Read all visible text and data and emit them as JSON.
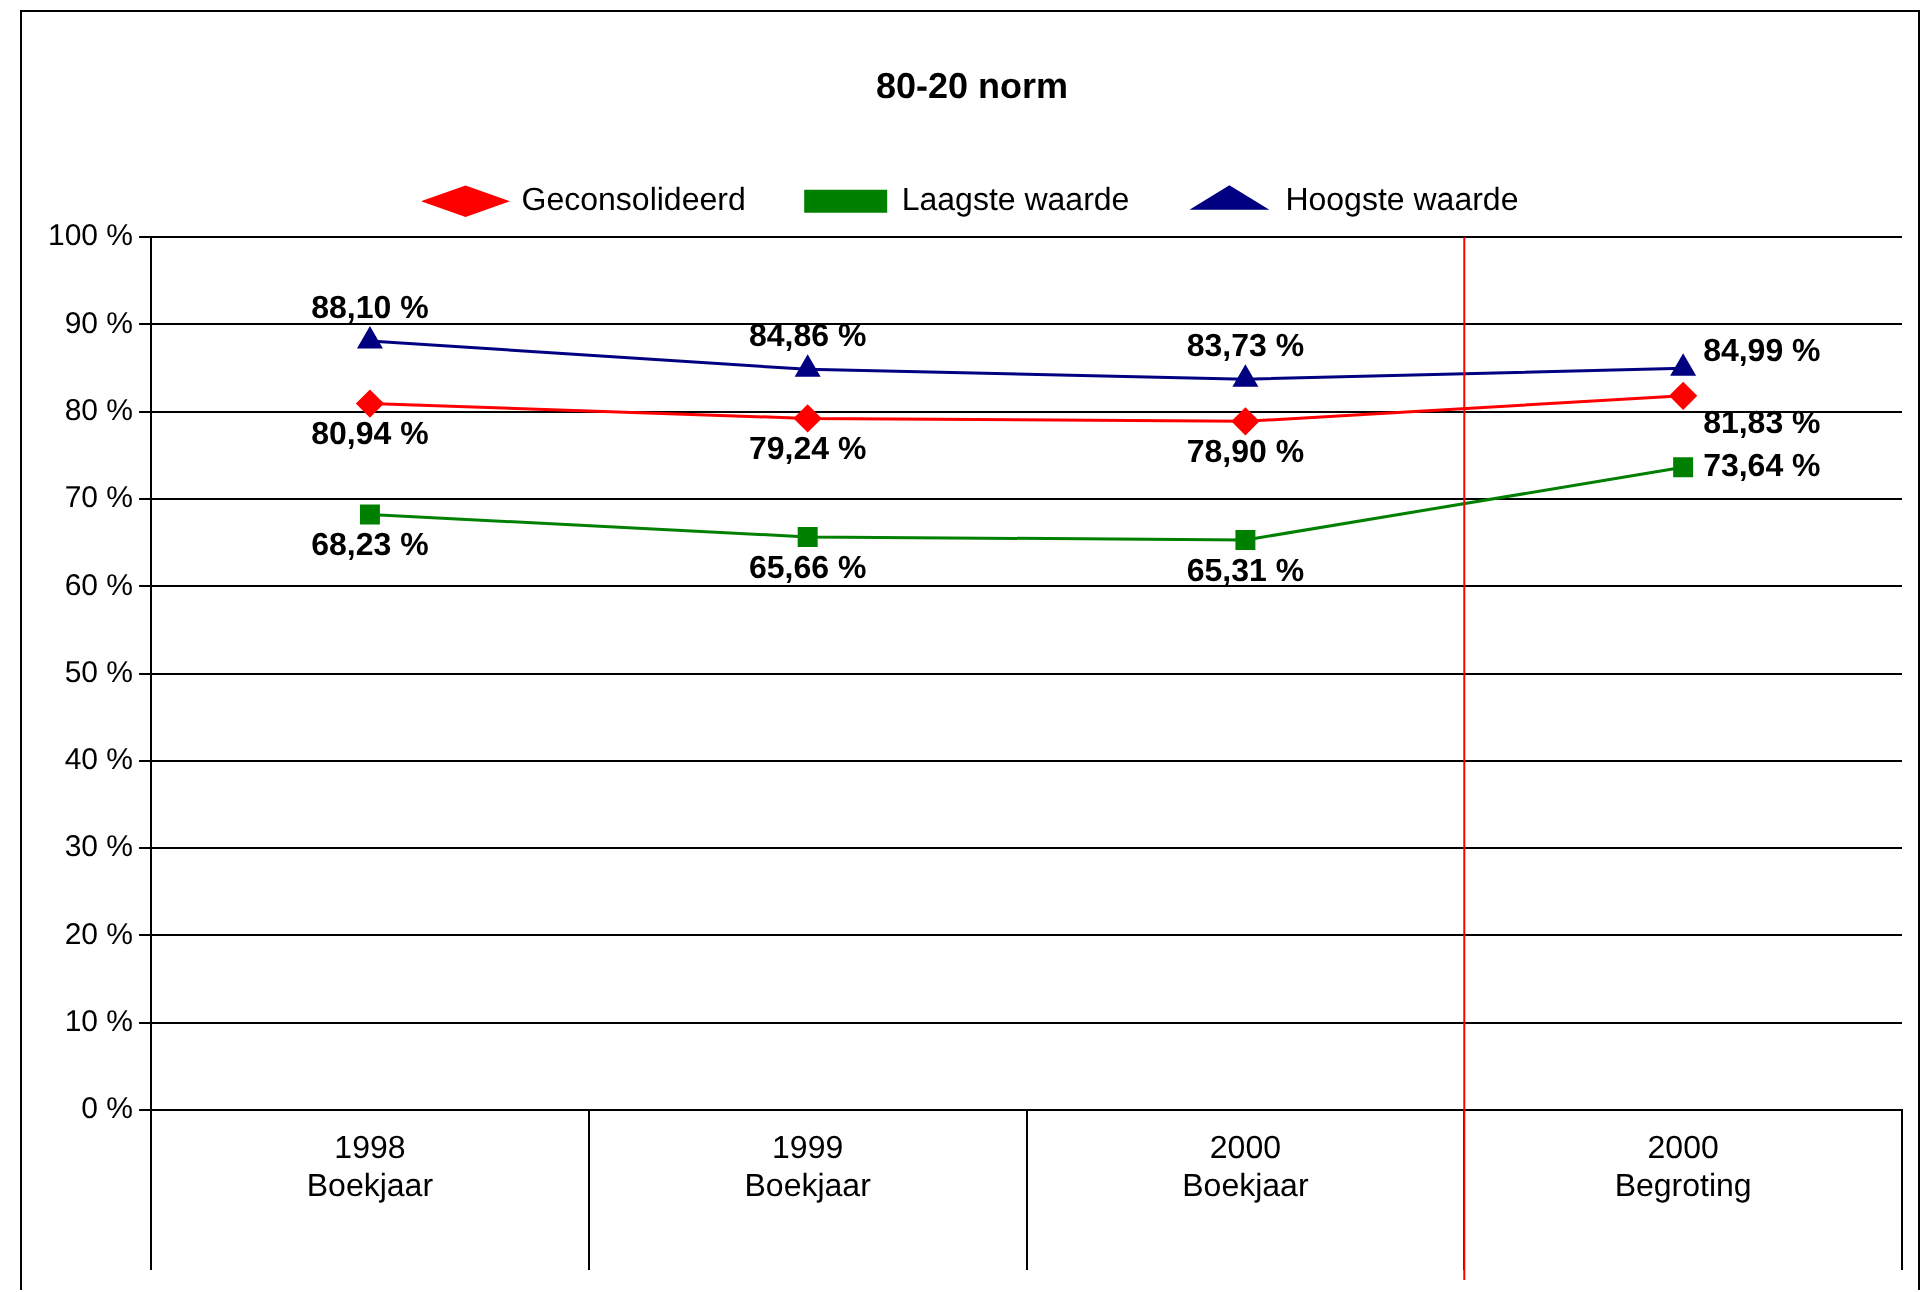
{
  "chart_data": {
    "type": "line",
    "title": "80-20 norm",
    "categories": [
      "1998\nBoekjaar",
      "1999\nBoekjaar",
      "2000\nBoekjaar",
      "2000\nBegroting"
    ],
    "series": [
      {
        "name": "Geconsolideerd",
        "color": "#ff0000",
        "marker": "diamond",
        "values": [
          80.94,
          79.24,
          78.9,
          81.83
        ],
        "value_labels": [
          "80,94 %",
          "79,24 %",
          "78,90 %",
          "81,83 %"
        ]
      },
      {
        "name": "Laagste waarde",
        "color": "#008000",
        "marker": "square",
        "values": [
          68.23,
          65.66,
          65.31,
          73.64
        ],
        "value_labels": [
          "68,23 %",
          "65,66 %",
          "65,31 %",
          "73,64 %"
        ]
      },
      {
        "name": "Hoogste waarde",
        "color": "#000080",
        "marker": "triangle",
        "values": [
          88.1,
          84.86,
          83.73,
          84.99
        ],
        "value_labels": [
          "88,10 %",
          "84,86 %",
          "83,73 %",
          "84,99 %"
        ]
      }
    ],
    "ylim": [
      0,
      100
    ],
    "yticks": [
      {
        "value": 0,
        "label": "0 %"
      },
      {
        "value": 10,
        "label": "10 %"
      },
      {
        "value": 20,
        "label": "20 %"
      },
      {
        "value": 30,
        "label": "30 %"
      },
      {
        "value": 40,
        "label": "40 %"
      },
      {
        "value": 50,
        "label": "50 %"
      },
      {
        "value": 60,
        "label": "60 %"
      },
      {
        "value": 70,
        "label": "70 %"
      },
      {
        "value": 80,
        "label": "80 %"
      },
      {
        "value": 90,
        "label": "90 %"
      },
      {
        "value": 100,
        "label": "100 %"
      }
    ],
    "ref_lines": [
      {
        "axis": "x",
        "value": "2000\nBegroting",
        "color": "#ff0000"
      }
    ],
    "grid": "y",
    "legend": "top",
    "line_style": "solid"
  }
}
